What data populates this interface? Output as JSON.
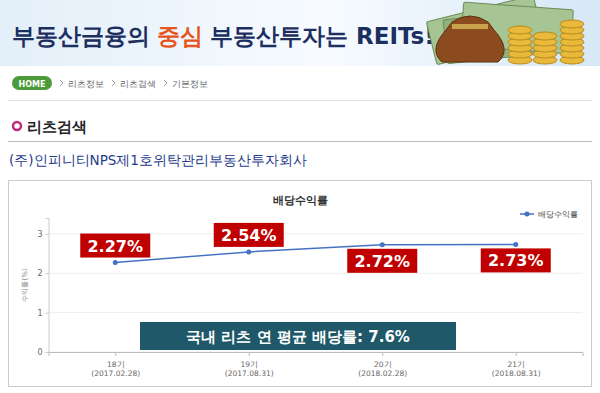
{
  "page": {
    "banner": {
      "lead": "부동산금융의",
      "highlight": "중심",
      "tail": "부동산투자는 REITs!"
    },
    "breadcrumb": [
      "HOME",
      "리츠정보",
      "리츠검색",
      "기본정보"
    ],
    "section_title": "리츠검색",
    "company_name": "(주)인피니티NPS제1호위탁관리부동산투자회사"
  },
  "chart_data": {
    "type": "line",
    "title": "배당수익률",
    "y_label": "수익률(%)",
    "categories": [
      "18기",
      "19기",
      "20기",
      "21기"
    ],
    "category_dates": [
      "(2017.02.28)",
      "(2017.08.31)",
      "(2018.02.28)",
      "(2018.08.31)"
    ],
    "series": [
      {
        "name": "배당수익률",
        "color": "#4472c4",
        "marker": "circle",
        "values": [
          2.27,
          2.54,
          2.72,
          2.73
        ],
        "value_labels": [
          "2.27%",
          "2.54%",
          "2.72%",
          "2.73%"
        ]
      }
    ],
    "ylim": [
      0,
      3.4
    ],
    "yticks": [
      0,
      1,
      2,
      3
    ],
    "grid": true,
    "legend": "top-right",
    "data_labels": true,
    "annotations": [
      "국내 리츠 연 평균 배당률: 7.6%"
    ]
  }
}
